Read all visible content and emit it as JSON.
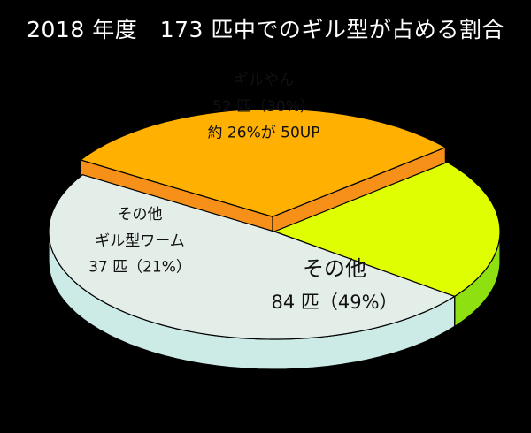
{
  "title": "2018 年度　173 匹中でのギル型が占める割合",
  "chart_data": {
    "type": "pie",
    "style": "3d-exploded",
    "title": "2018 年度　173 匹中でのギル型が占める割合",
    "total": 173,
    "slices": [
      {
        "name": "ギルやん",
        "value": 52,
        "percent": 30,
        "value_label": "52 匹（30%）",
        "note": "約 26%が 50UP",
        "color": "#ffb000",
        "side_color": "#f79018"
      },
      {
        "name": "その他",
        "value": 84,
        "percent": 49,
        "value_label": "84 匹（49%）",
        "color": "#e4eee9",
        "side_color": "#cdebe6"
      },
      {
        "name": "その他\nギル型ワーム",
        "value": 37,
        "percent": 21,
        "value_label": "37 匹（21%）",
        "color": "#dfff00",
        "side_color": "#8ee010"
      }
    ]
  }
}
